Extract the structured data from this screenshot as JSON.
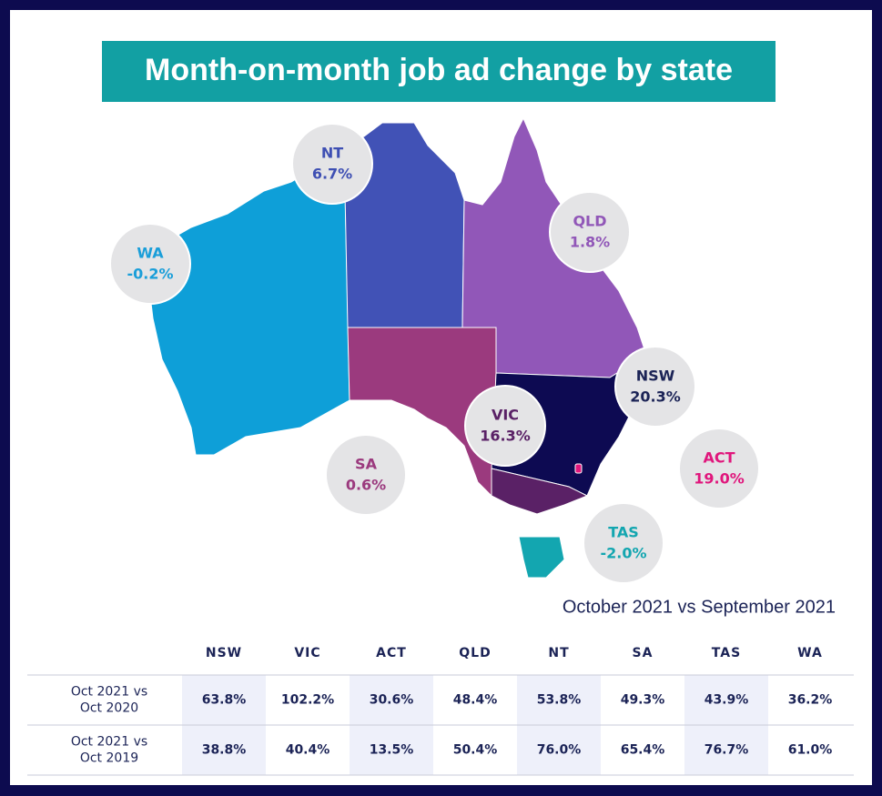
{
  "title": "Month-on-month job ad change by state",
  "states": [
    {
      "name": "NT",
      "value": "6.7%"
    },
    {
      "name": "WA",
      "value": "-0.2%"
    },
    {
      "name": "QLD",
      "value": "1.8%"
    },
    {
      "name": "NSW",
      "value": "20.3%"
    },
    {
      "name": "VIC",
      "value": "16.3%"
    },
    {
      "name": "SA",
      "value": "0.6%"
    },
    {
      "name": "ACT",
      "value": "19.0%"
    },
    {
      "name": "TAS",
      "value": "-2.0%"
    }
  ],
  "subtitle": "October 2021 vs September 2021",
  "table": {
    "columns": [
      "NSW",
      "VIC",
      "ACT",
      "QLD",
      "NT",
      "SA",
      "TAS",
      "WA"
    ],
    "rows": [
      {
        "label": [
          "Oct 2021 vs",
          "Oct 2020"
        ],
        "values": [
          "63.8%",
          "102.2%",
          "30.6%",
          "48.4%",
          "53.8%",
          "49.3%",
          "43.9%",
          "36.2%"
        ]
      },
      {
        "label": [
          "Oct 2021 vs",
          "Oct 2019"
        ],
        "values": [
          "38.8%",
          "40.4%",
          "13.5%",
          "50.4%",
          "76.0%",
          "65.4%",
          "76.7%",
          "61.0%"
        ]
      }
    ]
  }
}
